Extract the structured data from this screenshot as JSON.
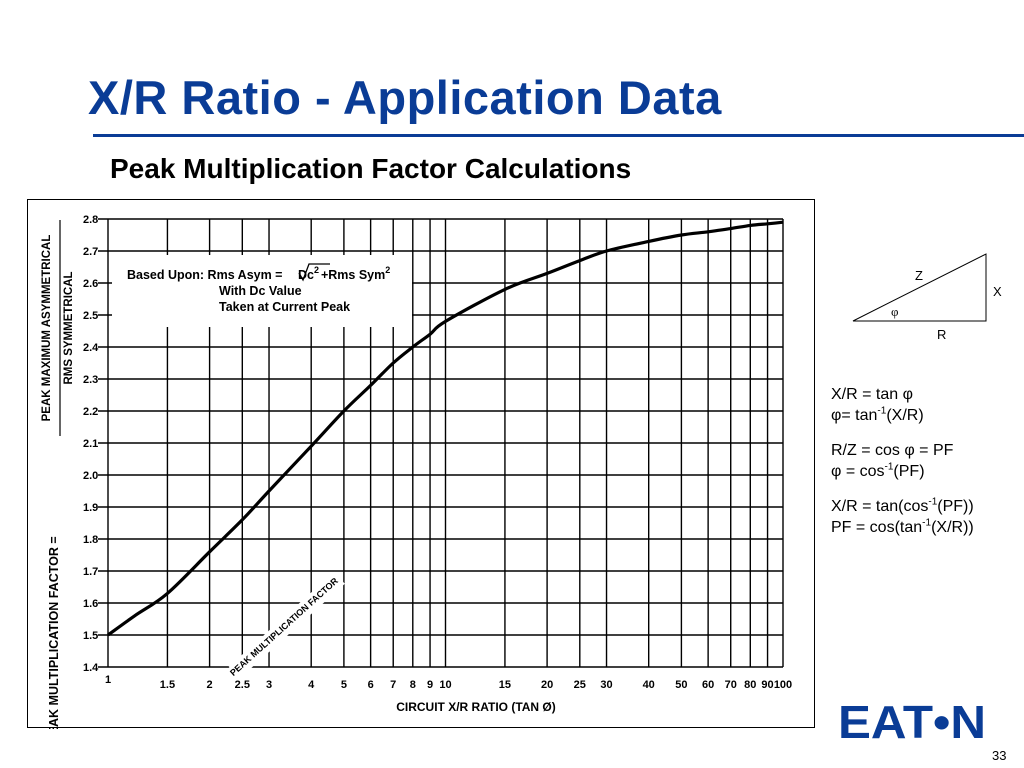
{
  "slide": {
    "title": "X/R Ratio - Application Data",
    "subtitle": "Peak Multiplication Factor Calculations",
    "page_number": "33"
  },
  "logo": {
    "text": "EAT•N",
    "color": "#0a3c96"
  },
  "triangle": {
    "hyp": "Z",
    "opp": "X",
    "adj": "R",
    "angle": "φ"
  },
  "formulas": {
    "l1": "X/R = tan φ",
    "l2_a": "φ= tan",
    "l2_sup": "-1",
    "l2_b": "(X/R)",
    "l3": "R/Z = cos φ = PF",
    "l4_a": "φ = cos",
    "l4_sup": "-1",
    "l4_b": "(PF)",
    "l5_a": "X/R = tan(cos",
    "l5_sup": "-1",
    "l5_b": "(PF))",
    "l6_a": "PF = cos(tan",
    "l6_sup": "-1",
    "l6_b": "(X/R))"
  },
  "chart_data": {
    "type": "line",
    "xscale": "log",
    "xlim": [
      1,
      100
    ],
    "ylim": [
      1.4,
      2.8
    ],
    "x_ticks": [
      1,
      1.5,
      2,
      2.5,
      3,
      4,
      5,
      6,
      7,
      8,
      9,
      10,
      15,
      20,
      25,
      30,
      40,
      50,
      60,
      70,
      80,
      90,
      100
    ],
    "x_tick_labels": [
      "1",
      "1.5",
      "2",
      "2.5",
      "3",
      "4",
      "5",
      "6",
      "7",
      "8",
      "9",
      "10",
      "15",
      "20",
      "25",
      "30",
      "40",
      "50",
      "60",
      "70",
      "80",
      "90",
      "100"
    ],
    "y_ticks": [
      1.4,
      1.5,
      1.6,
      1.7,
      1.8,
      1.9,
      2.0,
      2.1,
      2.2,
      2.3,
      2.4,
      2.5,
      2.6,
      2.7,
      2.8
    ],
    "y_tick_labels": [
      "1.4",
      "1.5",
      "1.6",
      "1.7",
      "1.8",
      "1.9",
      "2.0",
      "2.1",
      "2.2",
      "2.3",
      "2.4",
      "2.5",
      "2.6",
      "2.7",
      "2.8"
    ],
    "xlabel": "CIRCUIT X/R RATIO (TAN Ø)",
    "ylabel_main": "PEAK MULTIPLICATION FACTOR =",
    "ylabel_num": "PEAK MAXIMUM ASYMMETRICAL",
    "ylabel_den": "RMS SYMMETRICAL",
    "grid": true,
    "series": [
      {
        "name": "PEAK MULTIPLICATION FACTOR",
        "x": [
          1,
          1.2,
          1.5,
          2,
          2.5,
          3,
          4,
          5,
          6,
          7,
          8,
          9,
          10,
          15,
          20,
          25,
          30,
          40,
          50,
          60,
          70,
          80,
          90,
          100
        ],
        "y": [
          1.5,
          1.56,
          1.63,
          1.76,
          1.86,
          1.95,
          2.09,
          2.2,
          2.28,
          2.35,
          2.4,
          2.44,
          2.48,
          2.58,
          2.63,
          2.67,
          2.7,
          2.73,
          2.75,
          2.76,
          2.77,
          2.78,
          2.785,
          2.79
        ]
      }
    ],
    "annotation": {
      "l1_prefix": "Based Upon:  Rms Asym = ",
      "l1_dc": "Dc",
      "l1_mid": "+Rms Sym",
      "l1_sup": "2",
      "l2": "With Dc Value",
      "l3": "Taken at Current Peak"
    }
  }
}
